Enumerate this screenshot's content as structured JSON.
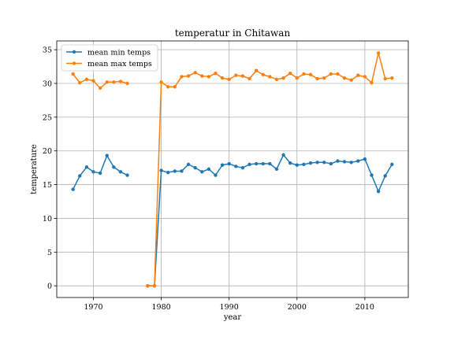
{
  "chart_data": {
    "type": "line",
    "title": "temperatur in Chitawan",
    "xlabel": "year",
    "ylabel": "temperature",
    "xlim": [
      1964.6,
      2016.4
    ],
    "ylim": [
      -1.73,
      36.3
    ],
    "xticks": [
      1970,
      1980,
      1990,
      2000,
      2010
    ],
    "yticks": [
      0,
      5,
      10,
      15,
      20,
      25,
      30,
      35
    ],
    "grid": true,
    "legend_position": "top-left",
    "series": [
      {
        "name": "mean min temps",
        "color": "#1f77b4",
        "segments": [
          {
            "x": [
              1967,
              1968,
              1969,
              1970,
              1971,
              1972,
              1973,
              1974,
              1975
            ],
            "y": [
              14.3,
              16.3,
              17.6,
              16.9,
              16.7,
              19.3,
              17.6,
              16.9,
              16.4
            ]
          },
          {
            "x": [
              1978,
              1979,
              1980,
              1981,
              1982,
              1983,
              1984,
              1985,
              1986,
              1987,
              1988,
              1989,
              1990,
              1991,
              1992,
              1993,
              1994,
              1995,
              1996,
              1997,
              1998,
              1999,
              2000,
              2001,
              2002,
              2003,
              2004,
              2005,
              2006,
              2007,
              2008,
              2009,
              2010,
              2011,
              2012,
              2013,
              2014
            ],
            "y": [
              0.0,
              0.0,
              17.1,
              16.8,
              17.0,
              17.0,
              18.0,
              17.5,
              16.9,
              17.3,
              16.4,
              17.9,
              18.1,
              17.7,
              17.5,
              18.0,
              18.1,
              18.1,
              18.1,
              17.3,
              19.4,
              18.2,
              17.9,
              18.0,
              18.2,
              18.3,
              18.3,
              18.1,
              18.5,
              18.4,
              18.3,
              18.5,
              18.8,
              16.4,
              14.0,
              16.3,
              18.0
            ]
          }
        ]
      },
      {
        "name": "mean max temps",
        "color": "#ff7f0e",
        "segments": [
          {
            "x": [
              1967,
              1968,
              1969,
              1970,
              1971,
              1972,
              1973,
              1974,
              1975
            ],
            "y": [
              31.4,
              30.1,
              30.6,
              30.4,
              29.3,
              30.2,
              30.2,
              30.3,
              30.0
            ]
          },
          {
            "x": [
              1978,
              1979,
              1980,
              1981,
              1982,
              1983,
              1984,
              1985,
              1986,
              1987,
              1988,
              1989,
              1990,
              1991,
              1992,
              1993,
              1994,
              1995,
              1996,
              1997,
              1998,
              1999,
              2000,
              2001,
              2002,
              2003,
              2004,
              2005,
              2006,
              2007,
              2008,
              2009,
              2010,
              2011,
              2012,
              2013,
              2014
            ],
            "y": [
              0.0,
              0.0,
              30.2,
              29.5,
              29.5,
              31.0,
              31.1,
              31.6,
              31.1,
              31.0,
              31.5,
              30.8,
              30.6,
              31.2,
              31.1,
              30.7,
              31.9,
              31.3,
              31.0,
              30.6,
              30.8,
              31.5,
              30.8,
              31.4,
              31.3,
              30.7,
              30.8,
              31.4,
              31.4,
              30.8,
              30.5,
              31.2,
              31.0,
              30.1,
              34.5,
              30.7,
              30.8
            ]
          }
        ]
      }
    ]
  }
}
